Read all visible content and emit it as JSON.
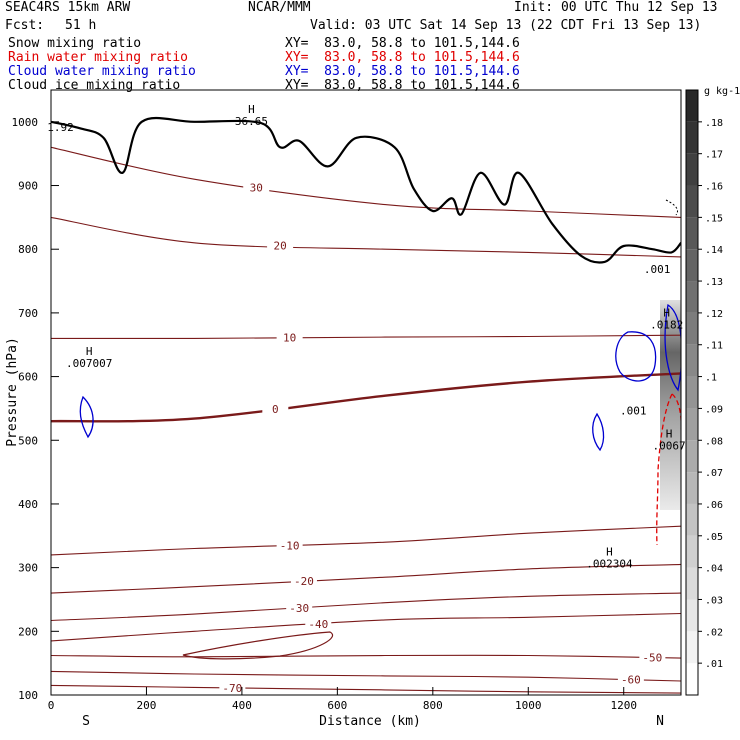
{
  "header": {
    "model": "SEAC4RS 15km ARW",
    "org": "NCAR/MMM",
    "init": "Init: 00 UTC Thu 12 Sep 13",
    "fcst_label": "Fcst:",
    "fcst_value": "51 h",
    "valid": "Valid: 03 UTC Sat 14 Sep 13 (22 CDT Fri 13 Sep 13)",
    "fields": [
      {
        "name": "Snow mixing ratio",
        "xy": "XY=  83.0, 58.8 to 101.5,144.6",
        "color": "#000000"
      },
      {
        "name": "Rain water mixing ratio",
        "xy": "XY=  83.0, 58.8 to 101.5,144.6",
        "color": "#e00000"
      },
      {
        "name": "Cloud water mixing ratio",
        "xy": "XY=  83.0, 58.8 to 101.5,144.6",
        "color": "#0000d0"
      },
      {
        "name": "Cloud ice mixing ratio",
        "xy": "XY=  83.0, 58.8 to 101.5,144.6",
        "color": "#000000"
      }
    ]
  },
  "chart_data": {
    "type": "contour",
    "xlabel": "Distance (km)",
    "ylabel": "Pressure (hPa)",
    "xlim": [
      0,
      1320
    ],
    "ylim": [
      1050,
      100
    ],
    "x_ticks": [
      0,
      200,
      400,
      600,
      800,
      1000,
      1200
    ],
    "y_ticks": [
      100,
      200,
      300,
      400,
      500,
      600,
      700,
      800,
      900,
      1000
    ],
    "left_end": "S",
    "right_end": "N",
    "colors": {
      "temperature": "#7a1a1a",
      "cloud_water": "#0000d0",
      "rain": "#e00000",
      "terrain": "#000000"
    },
    "temperature_contours": [
      {
        "value": -70,
        "label": "-70",
        "label_x": 380,
        "points": [
          [
            0,
            115
          ],
          [
            300,
            112
          ],
          [
            700,
            108
          ],
          [
            1000,
            105
          ],
          [
            1320,
            103
          ]
        ]
      },
      {
        "value": -60,
        "label": "-60",
        "label_x": 1215,
        "points": [
          [
            0,
            137
          ],
          [
            300,
            133
          ],
          [
            700,
            130
          ],
          [
            1000,
            128
          ],
          [
            1320,
            122
          ]
        ]
      },
      {
        "value": -50,
        "label": "-50",
        "label_x": 1260,
        "points": [
          [
            0,
            162
          ],
          [
            300,
            160
          ],
          [
            700,
            162
          ],
          [
            1000,
            162
          ],
          [
            1320,
            158
          ]
        ]
      },
      {
        "value": -40,
        "label": "-40",
        "label_x": 560,
        "points": [
          [
            0,
            185
          ],
          [
            300,
            200
          ],
          [
            700,
            218
          ],
          [
            1000,
            222
          ],
          [
            1320,
            228
          ]
        ]
      },
      {
        "value": -30,
        "label": "-30",
        "label_x": 520,
        "points": [
          [
            0,
            217
          ],
          [
            300,
            227
          ],
          [
            700,
            245
          ],
          [
            1000,
            255
          ],
          [
            1320,
            260
          ]
        ]
      },
      {
        "value": -20,
        "label": "-20",
        "label_x": 530,
        "points": [
          [
            0,
            260
          ],
          [
            300,
            270
          ],
          [
            700,
            285
          ],
          [
            1000,
            298
          ],
          [
            1320,
            305
          ]
        ]
      },
      {
        "value": -10,
        "label": "-10",
        "label_x": 500,
        "points": [
          [
            0,
            320
          ],
          [
            300,
            330
          ],
          [
            700,
            340
          ],
          [
            1000,
            354
          ],
          [
            1320,
            365
          ]
        ]
      },
      {
        "value": 0,
        "label": "0",
        "label_x": 470,
        "points": [
          [
            0,
            530
          ],
          [
            300,
            534
          ],
          [
            700,
            570
          ],
          [
            1000,
            592
          ],
          [
            1320,
            605
          ]
        ]
      },
      {
        "value": 10,
        "label": "10",
        "label_x": 500,
        "points": [
          [
            0,
            660
          ],
          [
            300,
            660
          ],
          [
            700,
            662
          ],
          [
            1000,
            663
          ],
          [
            1320,
            665
          ]
        ]
      },
      {
        "value": 20,
        "label": "20",
        "label_x": 480,
        "points": [
          [
            0,
            850
          ],
          [
            300,
            810
          ],
          [
            700,
            800
          ],
          [
            1000,
            795
          ],
          [
            1320,
            788
          ]
        ]
      },
      {
        "value": 30,
        "label": "30",
        "label_x": 430,
        "points": [
          [
            0,
            960
          ],
          [
            300,
            910
          ],
          [
            700,
            870
          ],
          [
            1000,
            860
          ],
          [
            1320,
            850
          ]
        ]
      }
    ],
    "extrema_labels": [
      {
        "type": "H",
        "value": ".002304",
        "x": 1170,
        "p": 305
      },
      {
        "type": "H",
        "value": ".007007",
        "x": 80,
        "p": 620
      },
      {
        "type": "H",
        "value": "36.65",
        "x": 420,
        "p": 1000
      },
      {
        "type": "H",
        "value": ".0182",
        "x": 1290,
        "p": 680
      },
      {
        "type": "H",
        "value": ".0067",
        "x": 1295,
        "p": 490
      },
      {
        "type": "",
        "value": ".001",
        "x": 1220,
        "p": 545
      },
      {
        "type": "",
        "value": ".001",
        "x": 1270,
        "p": 767
      },
      {
        "type": "",
        "value": "1.92",
        "x": 20,
        "p": 990
      }
    ],
    "terrain": [
      [
        0,
        1000
      ],
      [
        60,
        990
      ],
      [
        110,
        975
      ],
      [
        150,
        920
      ],
      [
        190,
        1000
      ],
      [
        300,
        1000
      ],
      [
        440,
        998
      ],
      [
        480,
        960
      ],
      [
        520,
        970
      ],
      [
        580,
        930
      ],
      [
        640,
        975
      ],
      [
        720,
        960
      ],
      [
        760,
        895
      ],
      [
        800,
        860
      ],
      [
        840,
        880
      ],
      [
        860,
        855
      ],
      [
        900,
        920
      ],
      [
        950,
        870
      ],
      [
        980,
        920
      ],
      [
        1050,
        840
      ],
      [
        1110,
        790
      ],
      [
        1160,
        780
      ],
      [
        1200,
        805
      ],
      [
        1260,
        800
      ],
      [
        1300,
        795
      ],
      [
        1320,
        810
      ]
    ],
    "shading_scale": {
      "unit": "g kg-1",
      "levels": [
        ".01",
        ".02",
        ".03",
        ".04",
        ".05",
        ".06",
        ".07",
        ".08",
        ".09",
        ".1",
        ".11",
        ".12",
        ".13",
        ".14",
        ".15",
        ".16",
        ".17",
        ".18"
      ]
    }
  }
}
